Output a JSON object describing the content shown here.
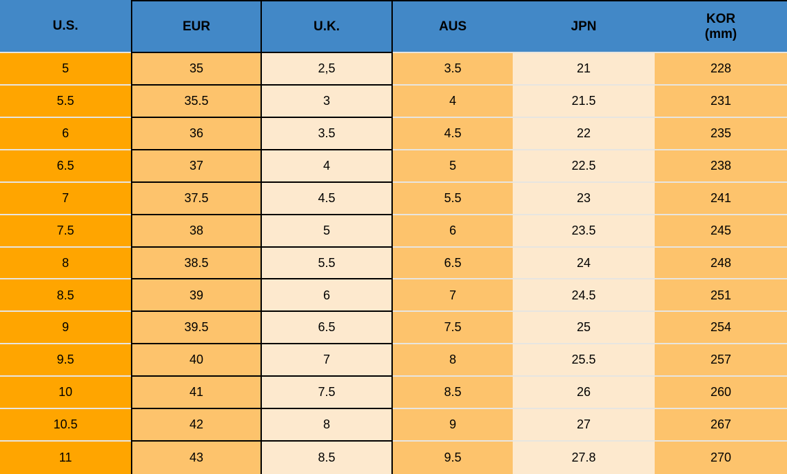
{
  "chart_data": {
    "type": "table",
    "columns": [
      {
        "key": "us",
        "label": "U.S."
      },
      {
        "key": "eur",
        "label": "EUR"
      },
      {
        "key": "uk",
        "label": "U.K."
      },
      {
        "key": "aus",
        "label": "AUS"
      },
      {
        "key": "jpn",
        "label": "JPN"
      },
      {
        "key": "kor",
        "label": "KOR",
        "sublabel": "(mm)"
      }
    ],
    "rows": [
      [
        "5",
        "35",
        "2,5",
        "3.5",
        "21",
        "228"
      ],
      [
        "5.5",
        "35.5",
        "3",
        "4",
        "21.5",
        "231"
      ],
      [
        "6",
        "36",
        "3.5",
        "4.5",
        "22",
        "235"
      ],
      [
        "6.5",
        "37",
        "4",
        "5",
        "22.5",
        "238"
      ],
      [
        "7",
        "37.5",
        "4.5",
        "5.5",
        "23",
        "241"
      ],
      [
        "7.5",
        "38",
        "5",
        "6",
        "23.5",
        "245"
      ],
      [
        "8",
        "38.5",
        "5.5",
        "6.5",
        "24",
        "248"
      ],
      [
        "8.5",
        "39",
        "6",
        "7",
        "24.5",
        "251"
      ],
      [
        "9",
        "39.5",
        "6.5",
        "7.5",
        "25",
        "254"
      ],
      [
        "9.5",
        "40",
        "7",
        "8",
        "25.5",
        "257"
      ],
      [
        "10",
        "41",
        "7.5",
        "8.5",
        "26",
        "260"
      ],
      [
        "10.5",
        "42",
        "8",
        "9",
        "27",
        "267"
      ],
      [
        "11",
        "43",
        "8.5",
        "9.5",
        "27.8",
        "270"
      ]
    ]
  },
  "colors": {
    "header_blue": "#4288C7",
    "us_orange": "#FFA500",
    "mid_orange": "#FDC36C",
    "cream": "#FDE9CE",
    "grid_black": "#000000",
    "light_separator": "#E7E5E0",
    "text_color": "#000000"
  }
}
